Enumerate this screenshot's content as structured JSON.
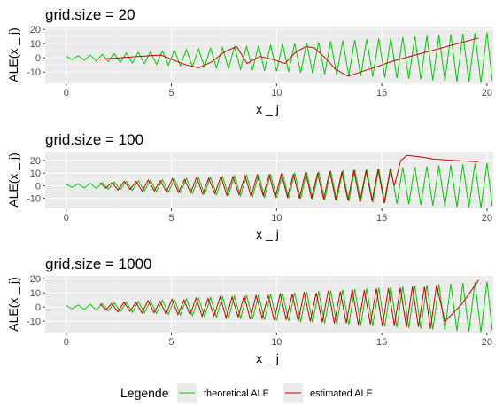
{
  "colors": {
    "theoretical": "#00cc00",
    "estimated": "#cc0000",
    "panel_bg": "#ebebeb",
    "grid_major": "#ffffff",
    "grid_minor": "#f5f5f5",
    "tick_text": "#4d4d4d"
  },
  "legend": {
    "title": "Legende",
    "items": [
      {
        "label": "theoretical ALE",
        "color_key": "theoretical"
      },
      {
        "label": "estimated ALE",
        "color_key": "estimated"
      }
    ],
    "placement": "bottom"
  },
  "chart_data": [
    {
      "type": "line",
      "title": "grid.size = 20",
      "xlabel": "x _ j",
      "ylabel": "ALE(x _ j)",
      "xlim": [
        -1,
        20.3
      ],
      "ylim": [
        -18,
        22
      ],
      "xticks": [
        0,
        5,
        10,
        15,
        20
      ],
      "yticks": [
        -10,
        0,
        10,
        20
      ],
      "grid": true,
      "series": [
        {
          "name": "theoretical ALE",
          "color_key": "theoretical",
          "kind": "zigzag",
          "x_start": 0,
          "x_end": 20,
          "n": 70
        },
        {
          "name": "estimated ALE",
          "color_key": "estimated",
          "kind": "points",
          "x": [
            1.6,
            2.5,
            3.5,
            4.5,
            5.0,
            5.7,
            6.3,
            6.9,
            7.5,
            8.1,
            8.6,
            9.2,
            9.8,
            10.4,
            10.9,
            11.4,
            11.8,
            12.3,
            12.8,
            13.4,
            14.0,
            14.8,
            15.6,
            16.6,
            17.6,
            18.6,
            19.6
          ],
          "y": [
            -1,
            0,
            1,
            2,
            -1,
            -5,
            -7,
            -3,
            4,
            8,
            -4,
            1,
            -1,
            -4,
            4,
            8,
            7,
            0,
            -8,
            -13,
            -10,
            -6,
            -2,
            2,
            6,
            10,
            14
          ]
        }
      ]
    },
    {
      "type": "line",
      "title": "grid.size = 100",
      "xlabel": "x _ j",
      "ylabel": "ALE(x _ j)",
      "xlim": [
        -1,
        20.3
      ],
      "ylim": [
        -18,
        27
      ],
      "xticks": [
        0,
        5,
        10,
        15,
        20
      ],
      "yticks": [
        -10,
        0,
        10,
        20
      ],
      "grid": true,
      "series": [
        {
          "name": "theoretical ALE",
          "color_key": "theoretical",
          "kind": "zigzag",
          "x_start": 0,
          "x_end": 20,
          "n": 70
        },
        {
          "name": "estimated ALE",
          "color_key": "estimated",
          "kind": "zigzag_then_points",
          "x_start": 1.6,
          "x_end": 15.4,
          "n": 48,
          "x": [
            15.6,
            15.9,
            16.2,
            16.8,
            17.5,
            18.5,
            19.6
          ],
          "y": [
            0,
            20,
            24,
            23,
            21,
            20,
            19
          ]
        }
      ]
    },
    {
      "type": "line",
      "title": "grid.size = 1000",
      "xlabel": "x _ j",
      "ylabel": "ALE(x _ j)",
      "xlim": [
        -1,
        20.3
      ],
      "ylim": [
        -18,
        22
      ],
      "xticks": [
        0,
        5,
        10,
        15,
        20
      ],
      "yticks": [
        -10,
        0,
        10,
        20
      ],
      "grid": true,
      "series": [
        {
          "name": "theoretical ALE",
          "color_key": "theoretical",
          "kind": "zigzag",
          "x_start": 0,
          "x_end": 20,
          "n": 70
        },
        {
          "name": "estimated ALE",
          "color_key": "estimated",
          "kind": "zigzag_then_points",
          "x_start": 1.6,
          "x_end": 17.6,
          "n": 56,
          "x": [
            18.0,
            18.8,
            19.6
          ],
          "y": [
            -10,
            2,
            19
          ]
        }
      ]
    }
  ]
}
